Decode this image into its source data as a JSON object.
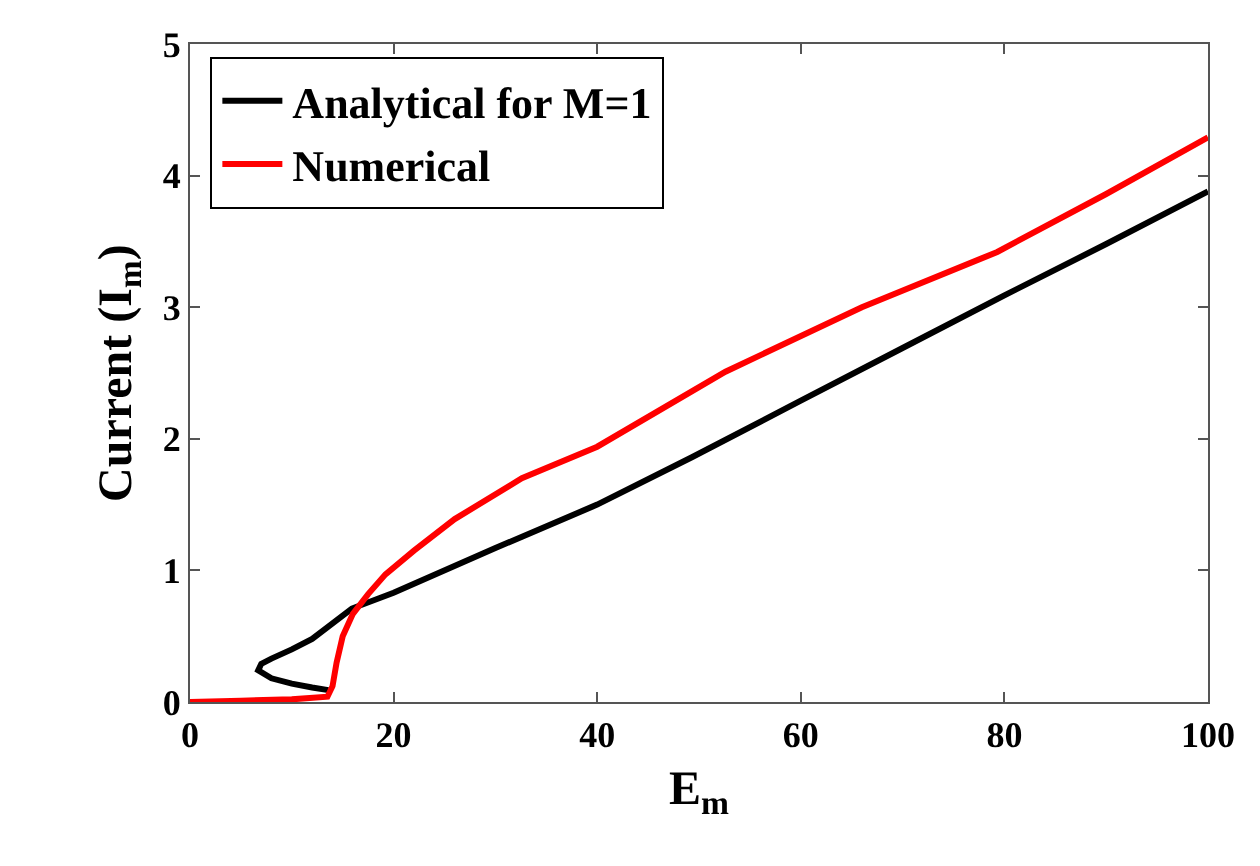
{
  "chart_data": {
    "type": "line",
    "xlabel": "E$_{m}$",
    "ylabel": "Current (I$_{m}$)",
    "xlim": [
      0,
      100
    ],
    "ylim": [
      0,
      5
    ],
    "xticks": [
      0,
      20,
      40,
      60,
      80,
      100
    ],
    "yticks": [
      0,
      1,
      2,
      3,
      4,
      5
    ],
    "grid": false,
    "legend": "top left",
    "line_style": "solid",
    "series": [
      {
        "name": "Analytical for M=1",
        "color": "#000000",
        "x": [
          13.6,
          12,
          10,
          8,
          6.7,
          7,
          8,
          10,
          12,
          15.9,
          20,
          30,
          40,
          49.3,
          60,
          70,
          80,
          90,
          100
        ],
        "values": [
          0.09,
          0.11,
          0.14,
          0.18,
          0.24,
          0.29,
          0.33,
          0.4,
          0.48,
          0.71,
          0.83,
          1.17,
          1.5,
          1.86,
          2.29,
          2.69,
          3.09,
          3.48,
          3.88
        ]
      },
      {
        "name": "Numerical",
        "color": "#ff0000",
        "x": [
          0,
          5,
          10,
          13.5,
          14,
          14.4,
          15,
          16,
          17.5,
          19.2,
          22,
          26,
          32.6,
          40,
          52.6,
          66,
          79.3,
          90,
          100
        ],
        "values": [
          0,
          0.01,
          0.02,
          0.04,
          0.12,
          0.3,
          0.5,
          0.67,
          0.82,
          0.97,
          1.15,
          1.39,
          1.7,
          1.94,
          2.51,
          3.0,
          3.42,
          3.86,
          4.29
        ]
      }
    ]
  }
}
